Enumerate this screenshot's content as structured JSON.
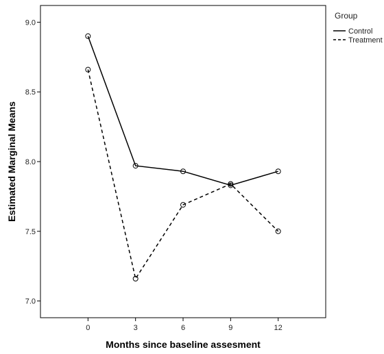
{
  "chart_data": {
    "type": "line",
    "title": "",
    "xlabel": "Months since baseline assesment",
    "ylabel": "Estimated Marginal Means",
    "x": [
      0,
      3,
      6,
      9,
      12
    ],
    "x_tick_labels": [
      "0",
      "3",
      "6",
      "9",
      "12"
    ],
    "y_tick_values": [
      7.0,
      7.5,
      8.0,
      8.5,
      9.0
    ],
    "y_tick_labels": [
      "7.0",
      "7.5",
      "8.0",
      "8.5",
      "9.0"
    ],
    "xlim": [
      -3,
      15
    ],
    "ylim": [
      6.88,
      9.12
    ],
    "grid": false,
    "legend": {
      "title": "Group",
      "placement": "top-right, outside plot"
    },
    "series": [
      {
        "name": "Control",
        "style": "solid",
        "values": [
          8.9,
          7.97,
          7.93,
          7.83,
          7.93
        ]
      },
      {
        "name": "Treatment",
        "style": "dashed",
        "values": [
          8.66,
          7.16,
          7.69,
          7.84,
          7.5
        ]
      }
    ],
    "colors": {
      "line": "#000000",
      "frame": "#000000",
      "background": "#ffffff"
    }
  }
}
